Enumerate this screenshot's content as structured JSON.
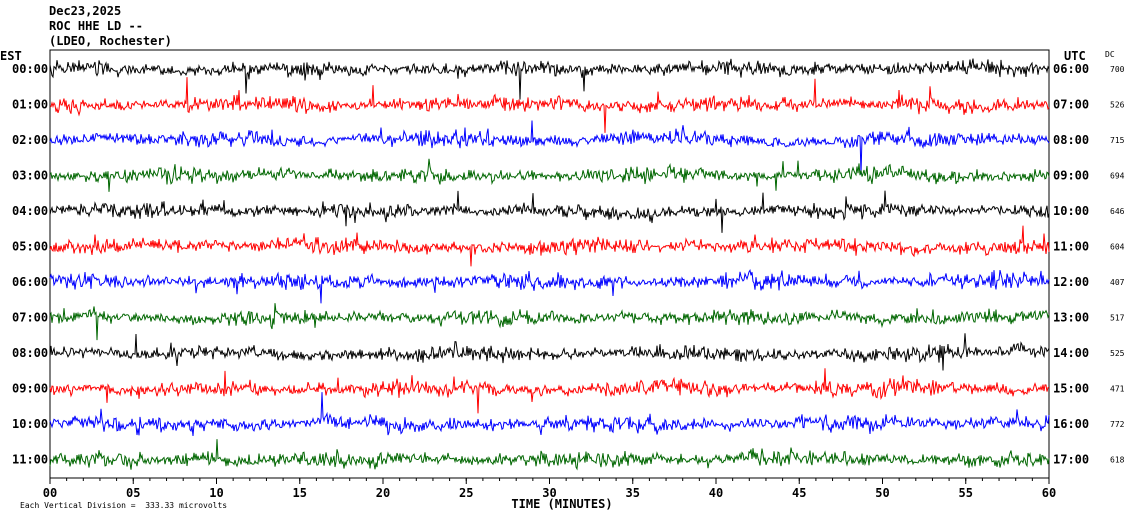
{
  "header": {
    "line1": "Dec23,2025",
    "line2": "ROC HHE LD --",
    "line3": "(LDEO, Rochester)"
  },
  "chart_data": {
    "type": "line",
    "title": "ROC HHE LD --",
    "date": "Dec23,2025",
    "left_axis_label": "EST",
    "right_axis_label": "UTC",
    "dc_label": "DC",
    "xlabel": "TIME (MINUTES)",
    "xlim": [
      0,
      60
    ],
    "x_ticks": [
      "00",
      "05",
      "10",
      "15",
      "20",
      "25",
      "30",
      "35",
      "40",
      "45",
      "50",
      "55",
      "60"
    ],
    "left_hours": [
      "00:00",
      "01:00",
      "02:00",
      "03:00",
      "04:00",
      "05:00",
      "06:00",
      "07:00",
      "08:00",
      "09:00",
      "10:00",
      "11:00"
    ],
    "right_hours": [
      "06:00",
      "07:00",
      "08:00",
      "09:00",
      "10:00",
      "11:00",
      "12:00",
      "13:00",
      "14:00",
      "15:00",
      "16:00",
      "17:00"
    ],
    "dc_values": [
      "700",
      "526",
      "715",
      "694",
      "646",
      "604",
      "407",
      "517",
      "525",
      "471",
      "772",
      "618"
    ],
    "trace_colors": [
      "#000000",
      "#ff0000",
      "#0000ff",
      "#006600"
    ],
    "scale_note": "Each Vertical Division =  333.33 microvolts",
    "grid": false
  }
}
